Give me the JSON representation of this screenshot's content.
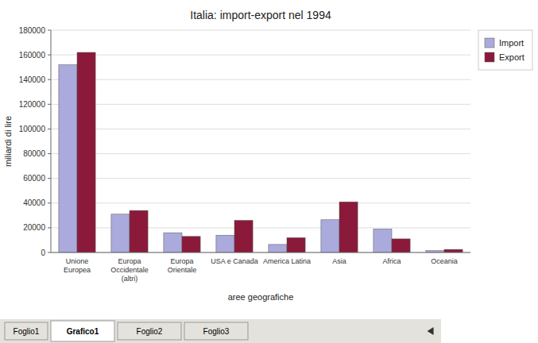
{
  "chart_data": {
    "type": "bar",
    "title": "Italia: import-export nel 1994",
    "x_label": "aree geografiche",
    "y_label": "miliardi di lire",
    "categories": [
      "Unione\nEuropea",
      "Europa\nOccidentale\n(altri)",
      "Europa\nOrientale",
      "USA e Canada",
      "America Latina",
      "Asia",
      "Africa",
      "Oceania"
    ],
    "series": [
      {
        "name": "Import",
        "color": "#aaaadd",
        "values": [
          152000,
          31000,
          16000,
          14000,
          6500,
          26500,
          19000,
          1500
        ]
      },
      {
        "name": "Export",
        "color": "#8b1a3a",
        "values": [
          162000,
          34000,
          13000,
          26000,
          12000,
          41000,
          11000,
          2500
        ]
      }
    ],
    "ylim": [
      0,
      180000
    ],
    "yticks": [
      0,
      20000,
      40000,
      60000,
      80000,
      100000,
      120000,
      140000,
      160000,
      180000
    ],
    "grid": true,
    "legend": "right",
    "annotations": [
      "Foglio1",
      "Grafico1",
      "Foglio2",
      "Foglio3"
    ]
  }
}
